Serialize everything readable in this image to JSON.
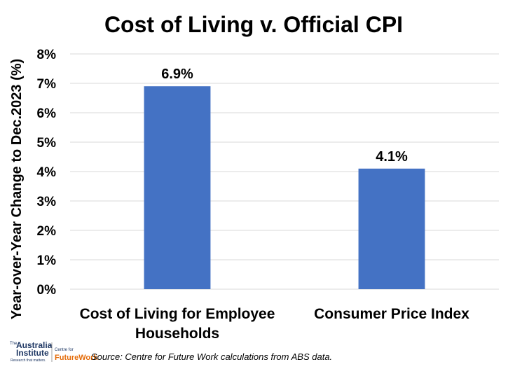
{
  "chart_data": {
    "type": "bar",
    "title": "Cost of Living v. Official CPI",
    "ylabel": "Year-over-Year Change to Dec.2023 (%)",
    "xlabel": "",
    "categories": [
      "Cost of Living for Employee Households",
      "Consumer Price Index"
    ],
    "category_lines": [
      [
        "Cost of Living for Employee",
        "Households"
      ],
      [
        "Consumer Price Index"
      ]
    ],
    "values": [
      6.9,
      4.1
    ],
    "data_labels": [
      "6.9%",
      "4.1%"
    ],
    "ylim": [
      0,
      8
    ],
    "yticks": [
      0,
      1,
      2,
      3,
      4,
      5,
      6,
      7,
      8
    ],
    "ytick_labels": [
      "0%",
      "1%",
      "2%",
      "3%",
      "4%",
      "5%",
      "6%",
      "7%",
      "8%"
    ],
    "grid": true,
    "bar_color": "#4472C4",
    "grid_color": "#D9D9D9"
  },
  "source": "Source: Centre for Future Work calculations from ABS data.",
  "logo": {
    "the": "The",
    "australia": "Australia",
    "institute": "Institute",
    "tagline": "Research that matters.",
    "centre_for": "Centre for",
    "future_work": "FutureWork",
    "brand_color": "#1F3864",
    "accent_color": "#E46C0A"
  }
}
